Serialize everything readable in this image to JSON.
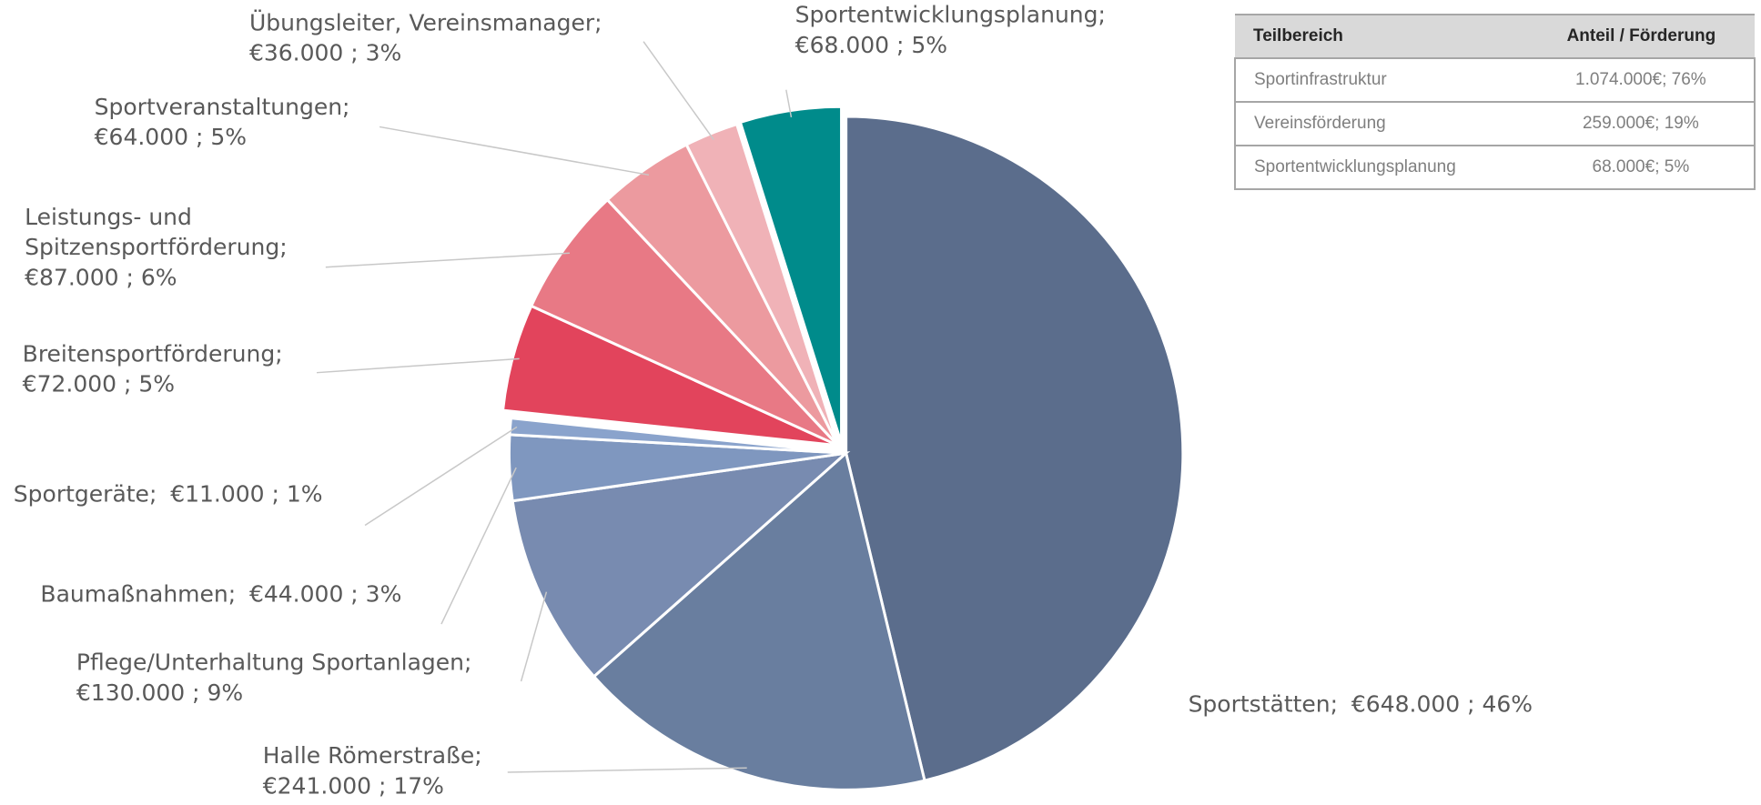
{
  "chart_data": {
    "type": "pie",
    "categories": [
      "Sportstätten;",
      "Halle Römerstraße;",
      "Pflege/Unterhaltung Sportanlagen;",
      "Baumaßnahmen;",
      "Sportgeräte;",
      "Breitensportförderung;",
      "Leistungs- und Spitzensportförderung;",
      "Sportveranstaltungen;",
      "Übungsleiter, Vereinsmanager;",
      "Sportentwicklungsplanung;"
    ],
    "values": [
      648000,
      241000,
      130000,
      44000,
      11000,
      72000,
      87000,
      64000,
      36000,
      68000
    ],
    "value_labels": [
      "€648.000 ; 46%",
      "€241.000 ; 17%",
      "€130.000 ; 9%",
      "€44.000 ; 3%",
      "€11.000 ; 1%",
      "€72.000 ; 5%",
      "€87.000 ; 6%",
      "€64.000 ; 5%",
      "€36.000 ; 3%",
      "€68.000 ; 5%"
    ],
    "colors": [
      "#5b6d8c",
      "#697e9f",
      "#788bb0",
      "#7f97bf",
      "#8aa3cc",
      "#e2445c",
      "#e87985",
      "#ec9a9f",
      "#f0b2b7",
      "#008b8b"
    ]
  },
  "table": {
    "header": [
      "Teilbereich",
      "Anteil / Förderung"
    ],
    "rows": [
      [
        "Sportinfrastruktur",
        "1.074.000€; 76%"
      ],
      [
        "Vereinsförderung",
        "259.000€; 19%"
      ],
      [
        "Sportentwicklungsplanung",
        "68.000€; 5%"
      ]
    ]
  }
}
